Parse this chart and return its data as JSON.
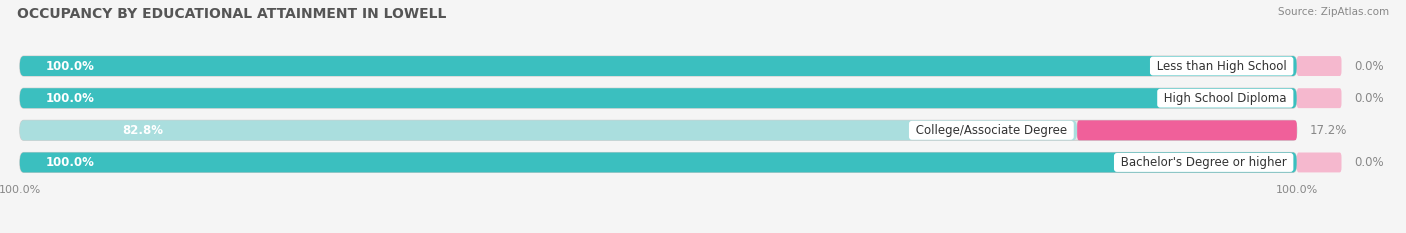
{
  "title": "OCCUPANCY BY EDUCATIONAL ATTAINMENT IN LOWELL",
  "source": "Source: ZipAtlas.com",
  "categories": [
    "Less than High School",
    "High School Diploma",
    "College/Associate Degree",
    "Bachelor's Degree or higher"
  ],
  "owner_pct": [
    100.0,
    100.0,
    82.8,
    100.0
  ],
  "renter_pct": [
    0.0,
    0.0,
    17.2,
    0.0
  ],
  "owner_color": "#3bbfbf",
  "renter_color_strong": "#f0609a",
  "renter_color_light": "#f5b8ce",
  "owner_color_light": "#aadede",
  "bar_bg_color": "#e8e8e8",
  "bar_bg_outline": "#d0d0d0",
  "background_color": "#f5f5f5",
  "title_fontsize": 10,
  "label_fontsize": 8.5,
  "pct_fontsize": 8.5,
  "source_fontsize": 7.5,
  "legend_fontsize": 8.5,
  "tick_fontsize": 8,
  "bar_height": 0.62
}
